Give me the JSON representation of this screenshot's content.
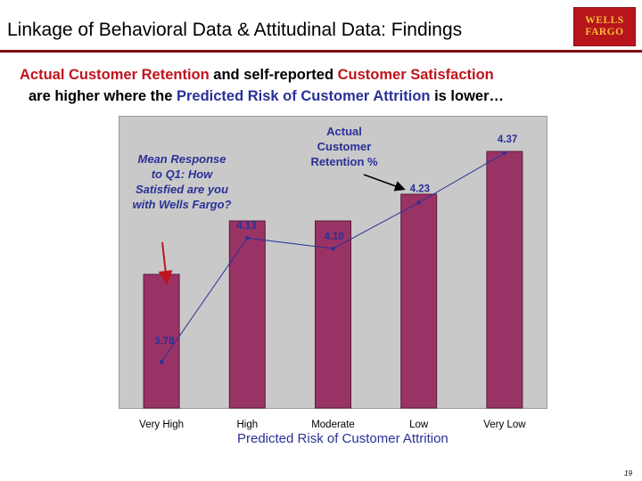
{
  "header": {
    "title": "Linkage of Behavioral Data & Attitudinal Data: Findings",
    "logo_line1": "WELLS",
    "logo_line2": "FARGO"
  },
  "subtitle": {
    "line1_part1": "Actual Customer Retention",
    "line1_part2": " and self-reported ",
    "line1_part3": "Customer Satisfaction",
    "line2_part1": "are higher where the ",
    "line2_part2": "Predicted Risk of Customer Attrition",
    "line2_part3": " is lower…"
  },
  "chart_data": {
    "type": "bar",
    "categories": [
      "Very High",
      "High",
      "Moderate",
      "Low",
      "Very Low"
    ],
    "series": [
      {
        "name": "Actual Customer Retention %",
        "kind": "bar",
        "values": [
          0.5,
          0.7,
          0.7,
          0.8,
          0.96
        ]
      },
      {
        "name": "Mean Response to Q1: How Satisfied are you with Wells Fargo?",
        "kind": "line",
        "values": [
          3.78,
          4.13,
          4.1,
          4.23,
          4.37
        ]
      }
    ],
    "data_labels": [
      "3.78",
      "4.13",
      "4.10",
      "4.23",
      "4.37"
    ],
    "ylabel": "Mean Response to Q1: How Satisfied are you with Wells Fargo?",
    "annotation": "Actual Customer Retention %",
    "xlabel": "Predicted Risk of Customer Attrition",
    "line_ylim": [
      3.65,
      4.45
    ],
    "bar_ylim": [
      0,
      1
    ],
    "grid": false,
    "colors": {
      "bar": "#993366",
      "bar_edge": "#5a1c3a",
      "line": "#2a3196",
      "plot_bg": "#c9c9c9"
    }
  },
  "footer": {
    "page_number": "19"
  }
}
